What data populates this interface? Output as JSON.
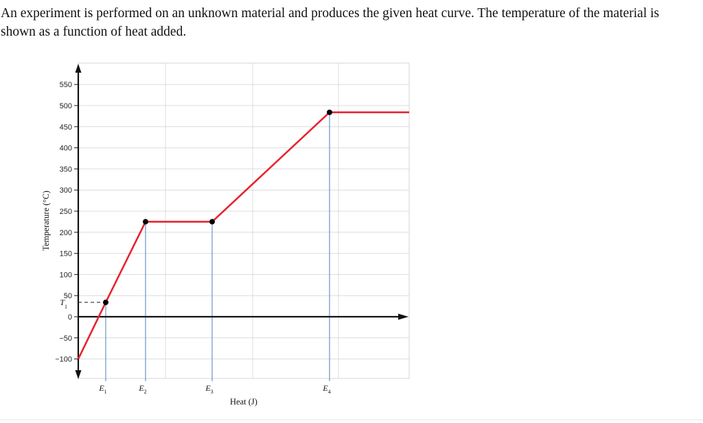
{
  "question": "An experiment is performed on an unknown material and produces the given heat curve. The temperature of the material is shown as a function of heat added.",
  "chart_data": {
    "type": "line",
    "title": "",
    "xlabel": "Heat (J)",
    "ylabel": "Temperature (°C)",
    "ylim": [
      -100,
      550
    ],
    "y_ticks": [
      550,
      500,
      450,
      400,
      350,
      300,
      250,
      200,
      150,
      100,
      50,
      0,
      -50,
      -100
    ],
    "grid": true,
    "x_markers": [
      {
        "main": "E",
        "sub": "1"
      },
      {
        "main": "E",
        "sub": "2"
      },
      {
        "main": "E",
        "sub": "3"
      },
      {
        "main": "E",
        "sub": "4"
      }
    ],
    "y_marker": {
      "main": "T",
      "sub": "1",
      "value": 34
    },
    "series": [
      {
        "color": "#e8232f",
        "points": [
          {
            "x": "0",
            "y": -100
          },
          {
            "x": "E1",
            "y": 34
          },
          {
            "x": "E2",
            "y": 225
          },
          {
            "x": "E3",
            "y": 225
          },
          {
            "x": "E4",
            "y": 484
          },
          {
            "x": "end",
            "y": 484
          }
        ]
      }
    ],
    "highlighted_points": [
      "E1",
      "E2",
      "E3",
      "E4"
    ]
  }
}
